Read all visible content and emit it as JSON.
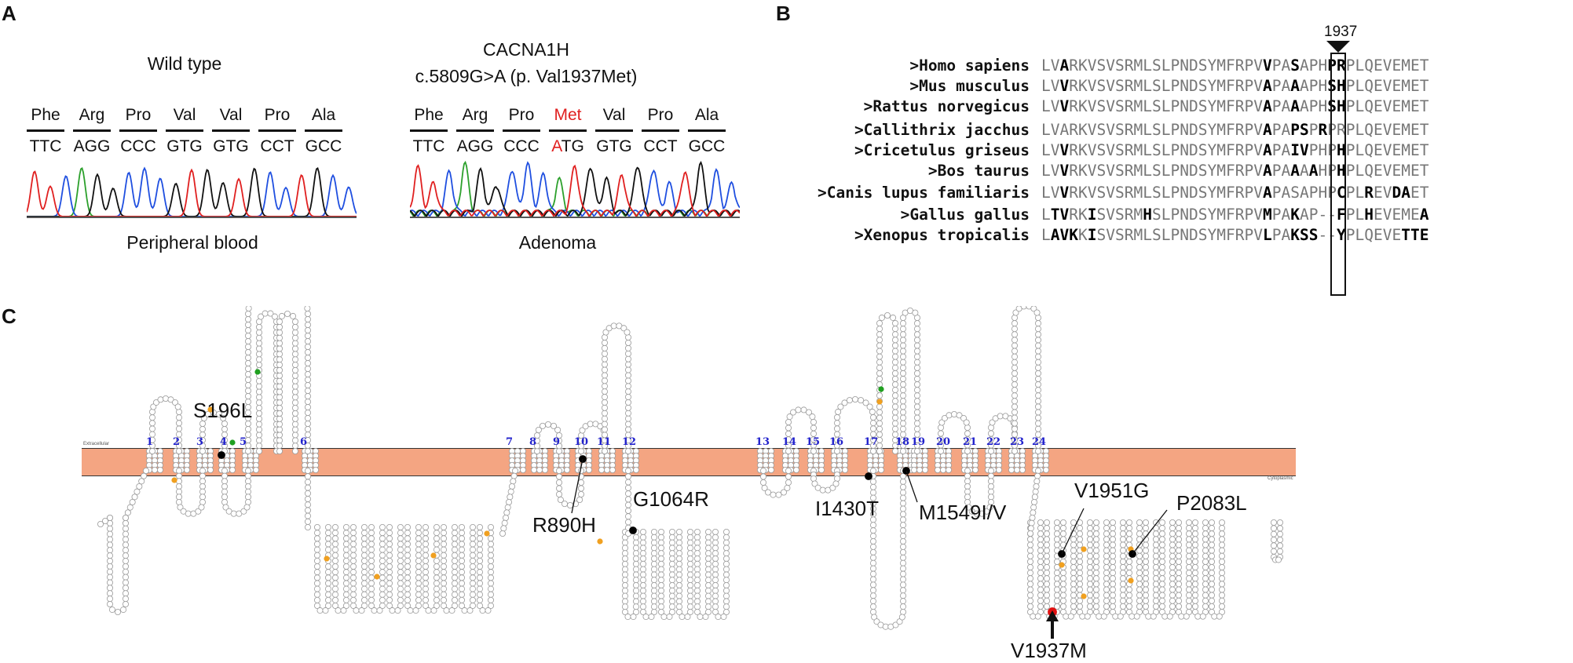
{
  "panel_a": {
    "letter": "A",
    "wild_type": {
      "title": "Wild type",
      "amino_acids": [
        "Phe",
        "Arg",
        "Pro",
        "Val",
        "Val",
        "Pro",
        "Ala"
      ],
      "codons": [
        "TTC",
        "AGG",
        "CCC",
        "GTG",
        "GTG",
        "CCT",
        "GCC"
      ],
      "caption": "Peripheral blood"
    },
    "mutant": {
      "gene": "CACNA1H",
      "variant": "c.5809G>A (p. Val1937Met)",
      "amino_acids": [
        "Phe",
        "Arg",
        "Pro",
        "Met",
        "Val",
        "Pro",
        "Ala"
      ],
      "codons": [
        "TTC",
        "AGG",
        "CCC",
        "ATG",
        "GTG",
        "CCT",
        "GCC"
      ],
      "mutant_base": "A",
      "mutant_codon_rest": "TG",
      "caption": "Adenoma"
    },
    "colors": {
      "A": "#2ca02c",
      "C": "#1f4fe0",
      "G": "#111111",
      "T": "#e02020",
      "mutation": "#e02020"
    }
  },
  "panel_b": {
    "letter": "B",
    "position_label": "1937",
    "species": [
      ">Homo sapiens",
      ">Mus musculus",
      ">Rattus norvegicus",
      ">Callithrix jacchus",
      ">Cricetulus griseus",
      ">Bos taurus",
      ">Canis lupus familiaris",
      ">Gallus gallus",
      ">Xenopus tropicalis"
    ],
    "sequences": [
      "LVARKVSVSRMLSLPNDSYMFRPVVPASAPHPRPLQEVEMET",
      "LVVRKVSVSRMLSLPNDSYMFRPVAPAAAPHSHPLQEVEMET",
      "LVVRKVSVSRMLSLPNDSYMFRPVAPAAAPHSHPLQEVEMET",
      "LVARKVSVSRMLSLPNDSYMFRPVAPAPSPRPRPLQEVEMET",
      "LVVRKVSVSRMLSLPNDSYMFRPVAPAIVPHPHPLQEVEMET",
      "LVVRKVSVSRMLSLPNDSYMFRPVAPAAAAHPHPLQEVEMET",
      "LVVRKVSVSRMLSLPNDSYMFRPVAPASAPHPCPLREVDAET",
      "LTVRKISVSRMHSLPNDSYMFRPVMPAKAP--FPLHEVEMEA",
      "LAVKKISVSRMLSLPNDSYMFRPVLPAKSS--YPLQEVETTE"
    ],
    "highlight_column": 24
  },
  "panel_c": {
    "letter": "C",
    "membrane_labels": {
      "extracellular": "Extracellular",
      "cytoplasmic": "Cytoplasmic"
    },
    "segments": [
      "1",
      "2",
      "3",
      "4",
      "5",
      "6",
      "7",
      "8",
      "9",
      "10",
      "11",
      "12",
      "13",
      "14",
      "15",
      "16",
      "17",
      "18",
      "19",
      "20",
      "21",
      "22",
      "23",
      "24"
    ],
    "mutations": [
      "S196L",
      "R890H",
      "G1064R",
      "I1430T",
      "M1549I/V",
      "V1951G",
      "P2083L",
      "V1937M"
    ],
    "colors": {
      "membrane": "#f4a582",
      "membrane_edge": "#333333",
      "residue": "#999999",
      "highlight": "#e01010",
      "dot": "#000000",
      "orange": "#f0a020",
      "green": "#20a020",
      "segment_text": "#2222cc"
    }
  }
}
